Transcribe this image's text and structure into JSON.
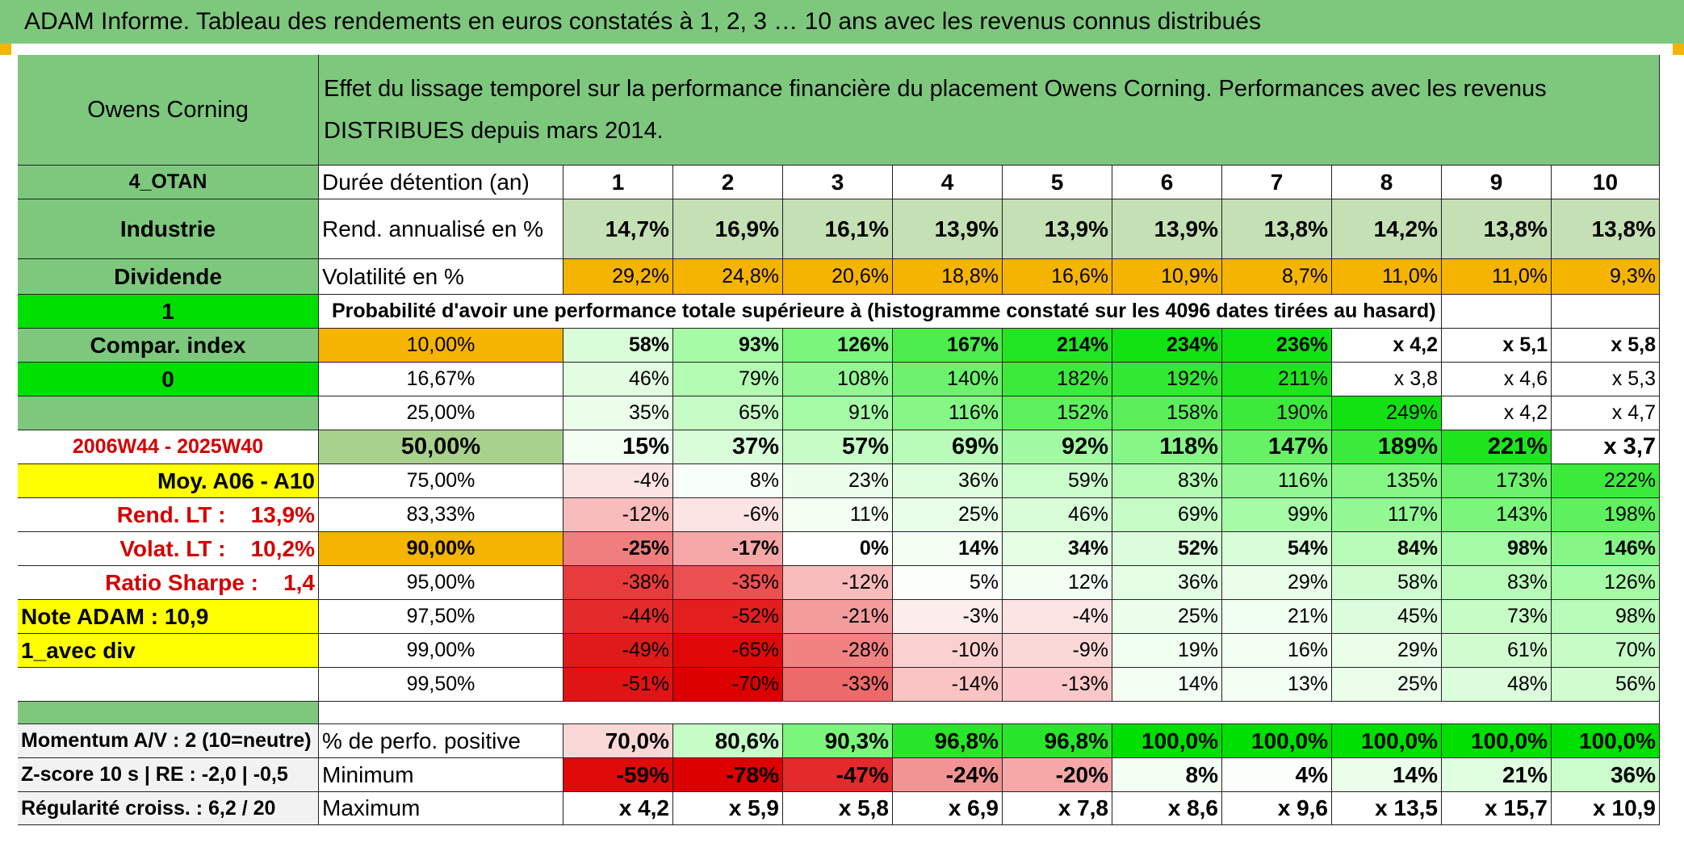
{
  "banner": {
    "title": "ADAM Informe. Tableau des rendements en euros constatés à 1, 2, 3 … 10 ans avec les revenus connus distribués"
  },
  "sidebar": {
    "company": "Owens Corning",
    "code": "4_OTAN",
    "sector": "Industrie",
    "dividend_label": "Dividende",
    "dividend_flag": "1",
    "compar_label": "Compar. index",
    "compar_flag": "0",
    "period": "2006W44 - 2025W40",
    "moy": "Moy. A06 - A10",
    "rend_lt": "Rend. LT :    13,9%",
    "volat_lt": "Volat. LT :    10,2%",
    "sharpe": "Ratio Sharpe :    1,4",
    "note": "Note ADAM : 10,9",
    "variant": "1_avec div",
    "momentum": "Momentum A/V : 2 (10=neutre)",
    "zscore": "Z-score 10 s | RE : -2,0 | -0,5",
    "regularite": "Régularité croiss. : 6,2 / 20"
  },
  "description": "Effet du lissage temporel sur la performance financière du placement Owens Corning. Performances avec les revenus DISTRIBUES depuis mars 2014.",
  "table": {
    "duration_label": "Durée détention (an)",
    "years": [
      "1",
      "2",
      "3",
      "4",
      "5",
      "6",
      "7",
      "8",
      "9",
      "10"
    ],
    "rend_label": "Rend. annualisé en %",
    "rend": [
      "14,7%",
      "16,9%",
      "16,1%",
      "13,9%",
      "13,9%",
      "13,9%",
      "13,8%",
      "14,2%",
      "13,8%",
      "13,8%"
    ],
    "vol_label": "Volatilité en %",
    "vol": [
      "29,2%",
      "24,8%",
      "20,6%",
      "18,8%",
      "16,6%",
      "10,9%",
      "8,7%",
      "11,0%",
      "11,0%",
      "9,3%"
    ],
    "prob_title": "Probabilité d'avoir une performance totale supérieure à (histogramme constaté sur les 4096 dates tirées au hasard)",
    "quantile_rows": [
      {
        "q": "10,00%",
        "v": [
          "58%",
          "93%",
          "126%",
          "167%",
          "214%",
          "234%",
          "236%",
          "x 4,2",
          "x 5,1",
          "x 5,8"
        ]
      },
      {
        "q": "16,67%",
        "v": [
          "46%",
          "79%",
          "108%",
          "140%",
          "182%",
          "192%",
          "211%",
          "x 3,8",
          "x 4,6",
          "x 5,3"
        ]
      },
      {
        "q": "25,00%",
        "v": [
          "35%",
          "65%",
          "91%",
          "116%",
          "152%",
          "158%",
          "190%",
          "249%",
          "x 4,2",
          "x 4,7"
        ]
      },
      {
        "q": "50,00%",
        "v": [
          "15%",
          "37%",
          "57%",
          "69%",
          "92%",
          "118%",
          "147%",
          "189%",
          "221%",
          "x 3,7"
        ]
      },
      {
        "q": "75,00%",
        "v": [
          "-4%",
          "8%",
          "23%",
          "36%",
          "59%",
          "83%",
          "116%",
          "135%",
          "173%",
          "222%"
        ]
      },
      {
        "q": "83,33%",
        "v": [
          "-12%",
          "-6%",
          "11%",
          "25%",
          "46%",
          "69%",
          "99%",
          "117%",
          "143%",
          "198%"
        ]
      },
      {
        "q": "90,00%",
        "v": [
          "-25%",
          "-17%",
          "0%",
          "14%",
          "34%",
          "52%",
          "54%",
          "84%",
          "98%",
          "146%"
        ]
      },
      {
        "q": "95,00%",
        "v": [
          "-38%",
          "-35%",
          "-12%",
          "5%",
          "12%",
          "36%",
          "29%",
          "58%",
          "83%",
          "126%"
        ]
      },
      {
        "q": "97,50%",
        "v": [
          "-44%",
          "-52%",
          "-21%",
          "-3%",
          "-4%",
          "25%",
          "21%",
          "45%",
          "73%",
          "98%"
        ]
      },
      {
        "q": "99,00%",
        "v": [
          "-49%",
          "-65%",
          "-28%",
          "-10%",
          "-9%",
          "19%",
          "16%",
          "29%",
          "61%",
          "70%"
        ]
      },
      {
        "q": "99,50%",
        "v": [
          "-51%",
          "-70%",
          "-33%",
          "-14%",
          "-13%",
          "14%",
          "13%",
          "25%",
          "48%",
          "56%"
        ]
      }
    ],
    "pos_label": "% de perfo. positive",
    "pos": [
      "70,0%",
      "80,6%",
      "90,3%",
      "96,8%",
      "96,8%",
      "100,0%",
      "100,0%",
      "100,0%",
      "100,0%",
      "100,0%"
    ],
    "min_label": "Minimum",
    "min": [
      "-59%",
      "-78%",
      "-47%",
      "-24%",
      "-20%",
      "8%",
      "4%",
      "14%",
      "21%",
      "36%"
    ],
    "max_label": "Maximum",
    "max": [
      "x 4,2",
      "x 5,9",
      "x 5,8",
      "x 6,9",
      "x 7,8",
      "x 8,6",
      "x 9,6",
      "x 13,5",
      "x 15,7",
      "x 10,9"
    ]
  },
  "colors": {
    "header_green": "#7ec87e",
    "bright_green": "#00e000",
    "gold": "#f5b400",
    "yellow": "#ffff00",
    "label_red": "#d40000"
  }
}
